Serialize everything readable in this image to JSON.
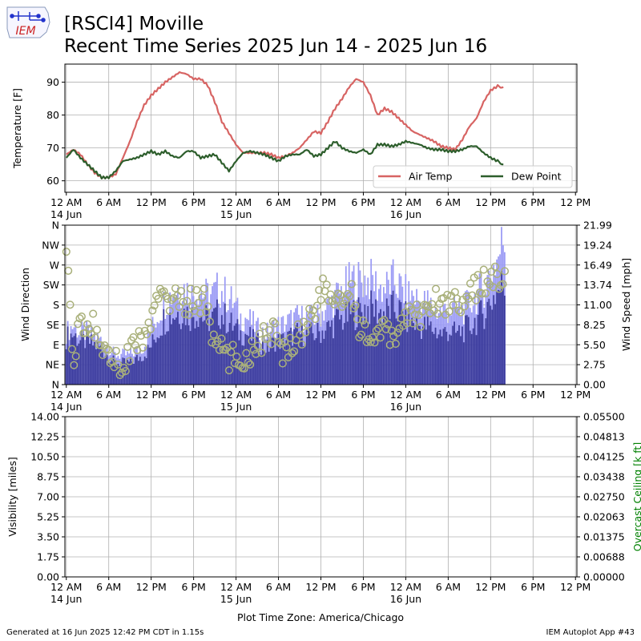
{
  "header": {
    "logo_text": "IEM",
    "title_line1": "[RSCI4] Moville",
    "title_line2": "Recent Time Series 2025 Jun 14 - 2025 Jun 16"
  },
  "footer": {
    "generated": "Generated at 16 Jun 2025 12:42 PM CDT in 1.15s",
    "app": "IEM Autoplot App #43"
  },
  "xaxis": {
    "label": "Plot Time Zone: America/Chicago",
    "tick_hours": [
      0,
      6,
      12,
      18,
      24,
      30,
      36,
      42,
      48,
      54,
      60,
      66,
      72
    ],
    "tick_labels": [
      "12 AM",
      "6 AM",
      "12 PM",
      "6 PM",
      "12 AM",
      "6 AM",
      "12 PM",
      "6 PM",
      "12 AM",
      "6 AM",
      "12 PM",
      "6 PM",
      "12 PM"
    ],
    "day_labels": [
      {
        "hour": 0,
        "text": "14 Jun"
      },
      {
        "hour": 24,
        "text": "15 Jun"
      },
      {
        "hour": 48,
        "text": "16 Jun"
      }
    ]
  },
  "chart_data": [
    {
      "id": "temperature",
      "type": "line",
      "ylabel": "Temperature [F]",
      "ylim": [
        56.5,
        95.5
      ],
      "yticks": [
        60,
        70,
        80,
        90
      ],
      "xlim_hours": [
        -0.2,
        72.2
      ],
      "grid": true,
      "legend": "lower-right",
      "series": [
        {
          "name": "Air Temp",
          "color": "#d76463",
          "points": [
            [
              0,
              68
            ],
            [
              1,
              69.5
            ],
            [
              2,
              68
            ],
            [
              3,
              65
            ],
            [
              4,
              62.5
            ],
            [
              5,
              61
            ],
            [
              6,
              61
            ],
            [
              7,
              62
            ],
            [
              8,
              67
            ],
            [
              9,
              72
            ],
            [
              10,
              78
            ],
            [
              11,
              83
            ],
            [
              12,
              86
            ],
            [
              13,
              88
            ],
            [
              14,
              90
            ],
            [
              15,
              91.5
            ],
            [
              16,
              93
            ],
            [
              17,
              92.5
            ],
            [
              18,
              91
            ],
            [
              19,
              91
            ],
            [
              20,
              89
            ],
            [
              21,
              84
            ],
            [
              22,
              78
            ],
            [
              23,
              74.5
            ],
            [
              24,
              71
            ],
            [
              25,
              68.5
            ],
            [
              26,
              68.5
            ],
            [
              27,
              68.5
            ],
            [
              28,
              68.5
            ],
            [
              29,
              68
            ],
            [
              30,
              67
            ],
            [
              31,
              67.5
            ],
            [
              32,
              68.5
            ],
            [
              33,
              70
            ],
            [
              34,
              72.5
            ],
            [
              35,
              75
            ],
            [
              36,
              74.5
            ],
            [
              37,
              78
            ],
            [
              38,
              82
            ],
            [
              39,
              85
            ],
            [
              40,
              88.5
            ],
            [
              41,
              91
            ],
            [
              42,
              90
            ],
            [
              43,
              86
            ],
            [
              44,
              80
            ],
            [
              45,
              82
            ],
            [
              46,
              81
            ],
            [
              47,
              79
            ],
            [
              48,
              77
            ],
            [
              49,
              75
            ],
            [
              50,
              74
            ],
            [
              51,
              73
            ],
            [
              52,
              72
            ],
            [
              53,
              70.5
            ],
            [
              54,
              70
            ],
            [
              55,
              69.5
            ],
            [
              56,
              72.5
            ],
            [
              57,
              76.5
            ],
            [
              58,
              79
            ],
            [
              59,
              84
            ],
            [
              60,
              87.5
            ],
            [
              61,
              88.8
            ],
            [
              61.8,
              88.5
            ]
          ]
        },
        {
          "name": "Dew Point",
          "color": "#2d5e2c",
          "points": [
            [
              0,
              67
            ],
            [
              1,
              69.5
            ],
            [
              2,
              67
            ],
            [
              3,
              65
            ],
            [
              4,
              63
            ],
            [
              5,
              61
            ],
            [
              6,
              61
            ],
            [
              7,
              63
            ],
            [
              8,
              66
            ],
            [
              9,
              66.5
            ],
            [
              10,
              67
            ],
            [
              11,
              68
            ],
            [
              12,
              69
            ],
            [
              13,
              68
            ],
            [
              14,
              69
            ],
            [
              15,
              67.5
            ],
            [
              16,
              67
            ],
            [
              17,
              69
            ],
            [
              18,
              69
            ],
            [
              19,
              67
            ],
            [
              20,
              67.5
            ],
            [
              21,
              68
            ],
            [
              22,
              65.5
            ],
            [
              23,
              63
            ],
            [
              24,
              66
            ],
            [
              25,
              68.5
            ],
            [
              26,
              69
            ],
            [
              27,
              68.5
            ],
            [
              28,
              68
            ],
            [
              29,
              67
            ],
            [
              30,
              66
            ],
            [
              31,
              67.5
            ],
            [
              32,
              68
            ],
            [
              33,
              68
            ],
            [
              34,
              69.5
            ],
            [
              35,
              67.5
            ],
            [
              36,
              68
            ],
            [
              37,
              70
            ],
            [
              38,
              72
            ],
            [
              39,
              70
            ],
            [
              40,
              69
            ],
            [
              41,
              68.5
            ],
            [
              42,
              69.5
            ],
            [
              43,
              68
            ],
            [
              44,
              71
            ],
            [
              45,
              71
            ],
            [
              46,
              70.5
            ],
            [
              47,
              71
            ],
            [
              48,
              72
            ],
            [
              49,
              71.5
            ],
            [
              50,
              71
            ],
            [
              51,
              70
            ],
            [
              52,
              69.5
            ],
            [
              53,
              69.5
            ],
            [
              54,
              69
            ],
            [
              55,
              69
            ],
            [
              56,
              69.5
            ],
            [
              57,
              70.5
            ],
            [
              58,
              70.5
            ],
            [
              59,
              68.5
            ],
            [
              60,
              67
            ],
            [
              61,
              66
            ],
            [
              61.8,
              65
            ]
          ]
        }
      ]
    },
    {
      "id": "wind",
      "type": "bar",
      "ylabel": "Wind Direction",
      "y2label": "Wind Speed [mph]",
      "direction_ticks": [
        "N",
        "NE",
        "E",
        "SE",
        "S",
        "SW",
        "W",
        "NW",
        "N"
      ],
      "speed_ticks": [
        "0.00",
        "2.75",
        "5.50",
        "8.25",
        "11.00",
        "13.74",
        "16.49",
        "19.24",
        "21.99"
      ],
      "speed_max": 21.99,
      "grid": true,
      "speed_color": "#3a3a9c",
      "gust_color": "#9b9bf5",
      "direction_marker_color": "#a9b07a",
      "speed_mph": [
        6.5,
        7,
        6,
        6,
        5.5,
        5,
        4,
        3,
        3,
        3,
        3.5,
        4,
        5,
        7,
        9,
        9.5,
        10,
        10,
        9.5,
        10,
        9,
        9,
        10,
        9,
        8,
        7,
        7,
        6,
        5.5,
        5,
        6,
        6,
        6.5,
        7,
        7,
        7,
        7,
        7.5,
        8,
        9,
        9,
        10,
        10,
        10.5,
        10.5,
        10,
        10,
        10.5,
        10,
        9,
        8.5,
        8,
        8,
        7.5,
        7,
        7.5,
        7,
        7.5,
        8,
        9,
        10,
        11.5,
        13,
        14
      ],
      "gust_mph": [
        7,
        8,
        7,
        7,
        6.5,
        6,
        5,
        4,
        4,
        4,
        4.5,
        5,
        7,
        9,
        11,
        12,
        13,
        13,
        12,
        13,
        12,
        12,
        13,
        12,
        11,
        9,
        9,
        8,
        7,
        7,
        8,
        8,
        8.5,
        9,
        9,
        9,
        9,
        10,
        11,
        12,
        13,
        14,
        14,
        14,
        14,
        13,
        13,
        14,
        13,
        12,
        12,
        11,
        11,
        10,
        10,
        10,
        10,
        10,
        11,
        12,
        13,
        15,
        17,
        20
      ],
      "direction_deg": [
        330,
        20,
        160,
        120,
        135,
        80,
        90,
        50,
        40,
        70,
        100,
        100,
        130,
        180,
        220,
        190,
        190,
        180,
        190,
        190,
        190,
        100,
        90,
        60,
        60,
        60,
        60,
        90,
        100,
        110,
        120,
        60,
        90,
        110,
        120,
        160,
        180,
        220,
        190,
        200,
        180,
        200,
        120,
        130,
        100,
        110,
        120,
        100,
        140,
        150,
        160,
        160,
        170,
        190,
        190,
        180,
        200,
        190,
        200,
        220,
        230,
        250,
        240,
        230
      ]
    },
    {
      "id": "visibility",
      "type": "line",
      "ylabel": "Visibility [miles]",
      "y2label": "Overcast Ceiling [k ft]",
      "y2label_color": "#008000",
      "yticks": [
        "0.00",
        "1.75",
        "3.50",
        "5.25",
        "7.00",
        "8.75",
        "10.50",
        "12.25",
        "14.00"
      ],
      "y2ticks": [
        "0.00000",
        "0.00688",
        "0.01375",
        "0.02063",
        "0.02750",
        "0.03438",
        "0.04125",
        "0.04813",
        "0.05500"
      ],
      "grid": true,
      "series": []
    }
  ]
}
